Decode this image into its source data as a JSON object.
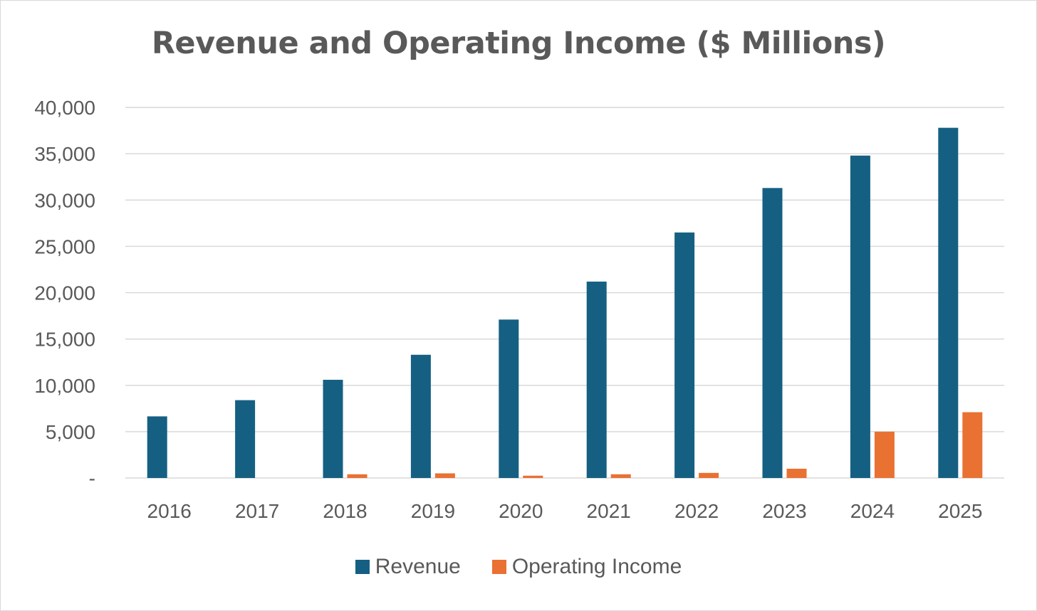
{
  "colors": {
    "revenue": "#156082",
    "operating_income": "#E97132",
    "gridline": "#d9d9d9",
    "text": "#595959"
  },
  "chart_data": {
    "type": "bar",
    "title": "Revenue and Operating Income ($ Millions)",
    "xlabel": "",
    "ylabel": "",
    "categories": [
      "2016",
      "2017",
      "2018",
      "2019",
      "2020",
      "2021",
      "2022",
      "2023",
      "2024",
      "2025"
    ],
    "series": [
      {
        "name": "Revenue",
        "color": "#156082",
        "values": [
          6650,
          8400,
          10600,
          13300,
          17100,
          21200,
          26500,
          31300,
          34800,
          37800
        ]
      },
      {
        "name": "Operating Income",
        "color": "#E97132",
        "values": [
          0,
          0,
          400,
          500,
          250,
          400,
          550,
          1000,
          5000,
          7100
        ]
      }
    ],
    "ylim": [
      0,
      40000
    ],
    "yticks": [
      0,
      5000,
      10000,
      15000,
      20000,
      25000,
      30000,
      35000,
      40000
    ],
    "ytick_labels": [
      "-",
      "5,000",
      "10,000",
      "15,000",
      "20,000",
      "25,000",
      "30,000",
      "35,000",
      "40,000"
    ],
    "grid": true,
    "legend_position": "bottom"
  }
}
